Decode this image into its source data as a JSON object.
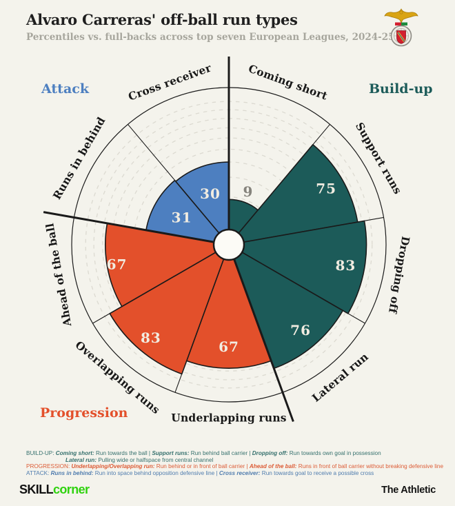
{
  "header": {
    "title": "Alvaro Carreras' off-ball run types",
    "subtitle": "Percentiles vs. full-backs across top seven European Leagues, 2024-25",
    "crest_icon": "benfica-club-crest"
  },
  "chart_data": {
    "type": "pie",
    "variant": "polar-pizza-percentile",
    "title": "Alvaro Carreras' off-ball run types",
    "unit": "percentile",
    "rlim": [
      0,
      100
    ],
    "gridlines": [
      10,
      20,
      30,
      40,
      50,
      60,
      70,
      80,
      90
    ],
    "grid": "dashed-circles",
    "legend_position": "corners",
    "segments": [
      {
        "label": "Coming short",
        "value": 9,
        "group": "Build-up"
      },
      {
        "label": "Support runs",
        "value": 75,
        "group": "Build-up"
      },
      {
        "label": "Dropping off",
        "value": 83,
        "group": "Build-up"
      },
      {
        "label": "Lateral run",
        "value": 76,
        "group": "Build-up"
      },
      {
        "label": "Underlapping runs",
        "value": 67,
        "group": "Progression"
      },
      {
        "label": "Overlapping runs",
        "value": 83,
        "group": "Progression"
      },
      {
        "label": "Ahead of the ball",
        "value": 67,
        "group": "Progression"
      },
      {
        "label": "Runs in behind",
        "value": 31,
        "group": "Attack"
      },
      {
        "label": "Cross receiver",
        "value": 30,
        "group": "Attack"
      }
    ],
    "groups": [
      {
        "name": "Build-up",
        "color": "#1c5b59"
      },
      {
        "name": "Progression",
        "color": "#e3502b"
      },
      {
        "name": "Attack",
        "color": "#4d7fc0"
      }
    ]
  },
  "footer": {
    "lines": [
      {
        "group": "buildup",
        "indent": false,
        "parts": [
          {
            "t": "BUILD-UP: ",
            "b": false
          },
          {
            "t": "Coming short:",
            "b": true
          },
          {
            "t": " Run towards the ball | ",
            "b": false
          },
          {
            "t": "Support runs:",
            "b": true
          },
          {
            "t": " Run behind ball carrier | ",
            "b": false
          },
          {
            "t": "Dropping off:",
            "b": true
          },
          {
            "t": " Run towards own goal in possession",
            "b": false
          }
        ]
      },
      {
        "group": "buildup",
        "indent": true,
        "parts": [
          {
            "t": "Lateral run:",
            "b": true
          },
          {
            "t": " Pulling wide or halfspace from central channel",
            "b": false
          }
        ]
      },
      {
        "group": "progression",
        "indent": false,
        "parts": [
          {
            "t": "PROGRESSION: ",
            "b": false
          },
          {
            "t": "Underlapping/Overlapping run:",
            "b": true
          },
          {
            "t": " Run behind or in front of ball carrier | ",
            "b": false
          },
          {
            "t": "Ahead of the ball:",
            "b": true
          },
          {
            "t": " Runs in front of ball carrier without breaking defensive line",
            "b": false
          }
        ]
      },
      {
        "group": "attack",
        "indent": false,
        "parts": [
          {
            "t": "ATTACK: ",
            "b": false
          },
          {
            "t": "Runs in behind:",
            "b": true
          },
          {
            "t": " Run into space behind opposition defensive line | ",
            "b": false
          },
          {
            "t": "Cross receiver:",
            "b": true
          },
          {
            "t": " Run towards goal to receive a possible cross",
            "b": false
          }
        ]
      }
    ]
  },
  "branding": {
    "skill": "SKILL",
    "corner": "corner",
    "athletic": "The Athletic"
  },
  "colors": {
    "background": "#f4f3ec",
    "outline": "#1a1a1a",
    "grid": "#dcdad1",
    "hole_fill": "#fcfbf6",
    "value_label": "#f1ece1",
    "value_label_muted": "#85837c",
    "footer_buildup": "#35706d",
    "footer_progression": "#dc5b35",
    "footer_attack": "#4f7cae",
    "skill_green": "#2fd20e"
  }
}
